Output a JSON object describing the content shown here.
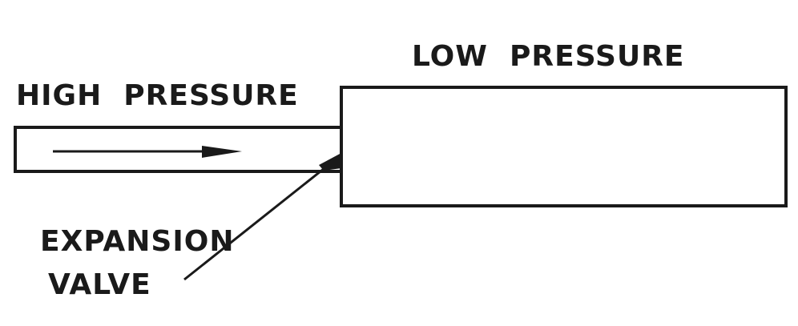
{
  "labels": {
    "low_pressure": "LOW  PRESSURE",
    "high_pressure": "HIGH  PRESSURE",
    "expansion_line1": "EXPANSION",
    "expansion_line2": "VALVE"
  },
  "colors": {
    "ink": "#1a1a1a",
    "background": "#ffffff"
  }
}
